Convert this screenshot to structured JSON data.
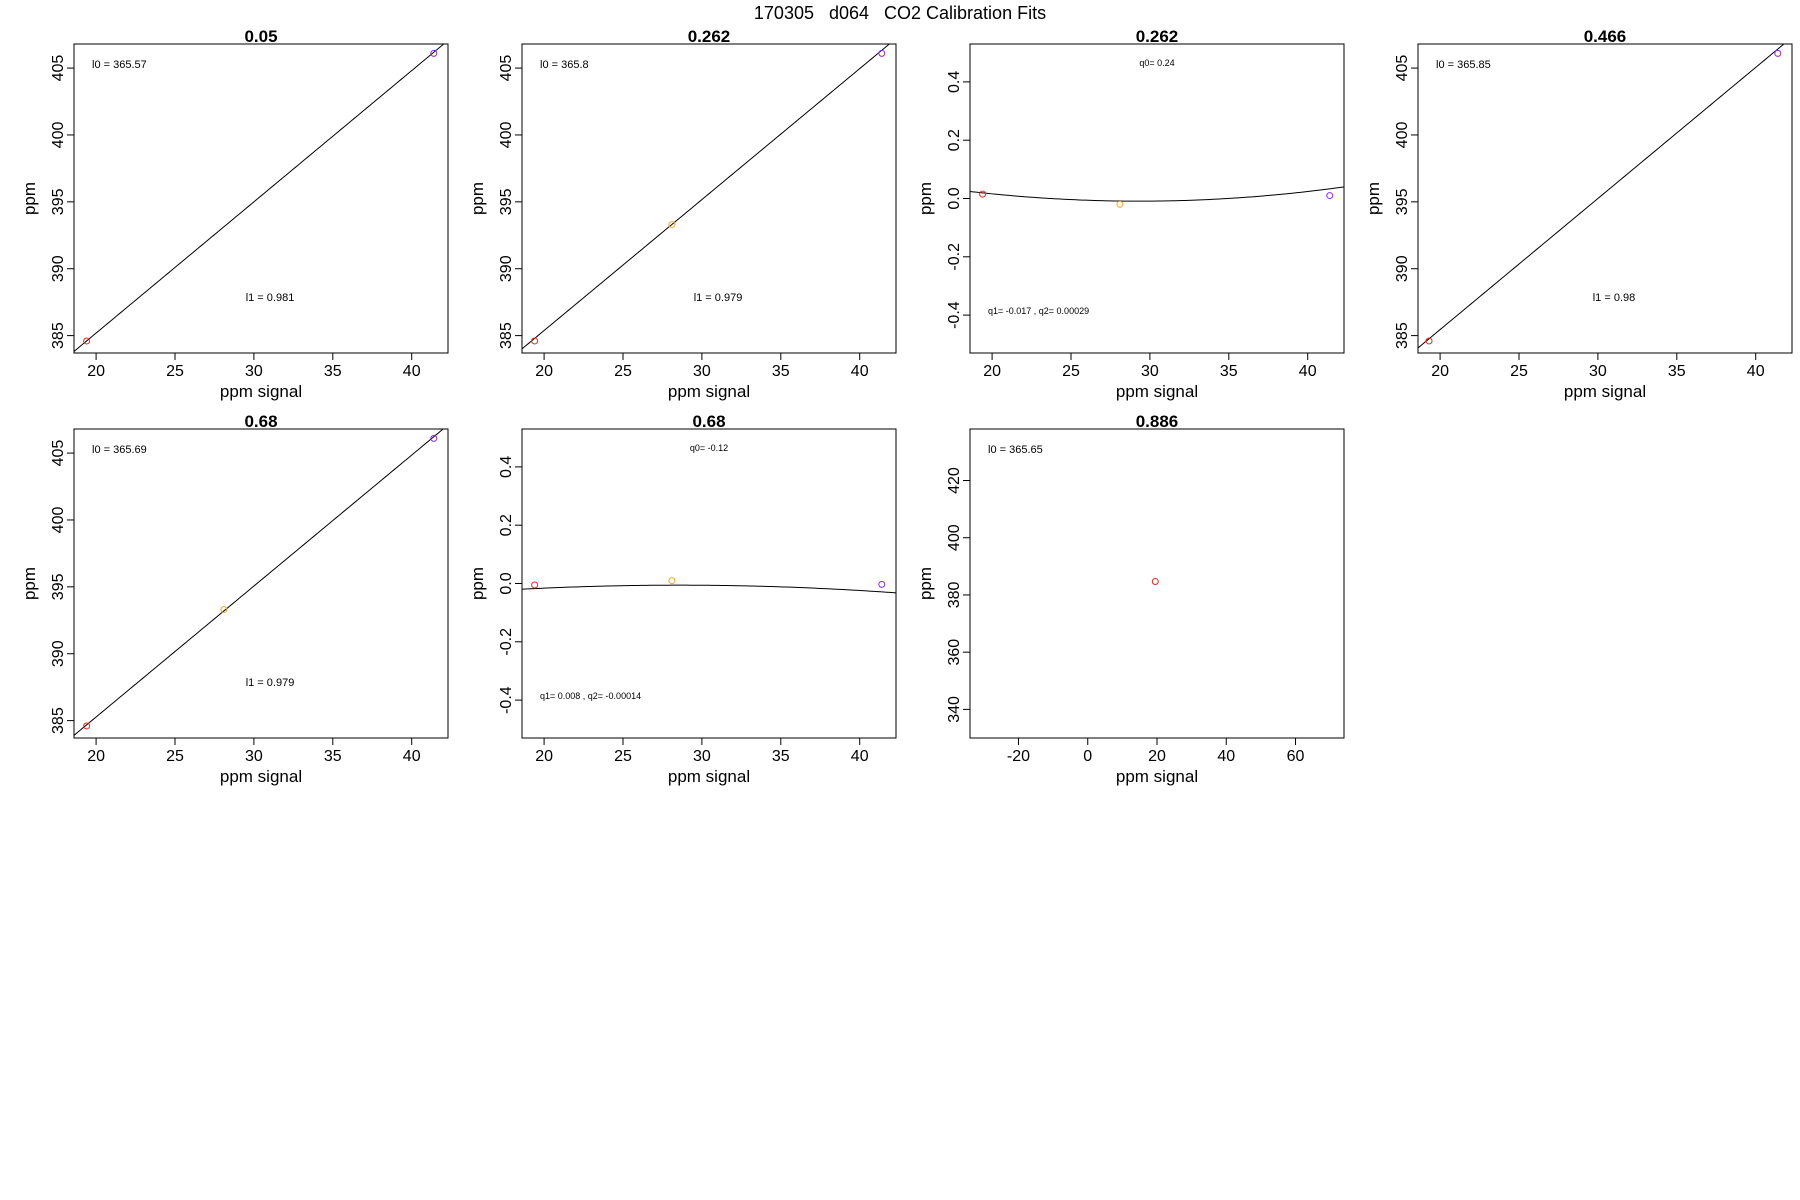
{
  "figure": {
    "title": "170305   d064   CO2 Calibration Fits"
  },
  "chart_data": [
    {
      "type": "scatter",
      "title": "0.05",
      "xlabel": "ppm signal",
      "ylabel": "ppm",
      "xlim": [
        18.6,
        42.3
      ],
      "ylim": [
        383.7,
        406.8
      ],
      "xticks": [
        20,
        25,
        30,
        35,
        40
      ],
      "yticks": [
        385,
        390,
        395,
        400,
        405
      ],
      "points": [
        {
          "x": 19.4,
          "y": 384.6,
          "color": "#e8271f"
        },
        {
          "x": 41.4,
          "y": 406.1,
          "color": "#8a2be2"
        }
      ],
      "fit": {
        "kind": "linear",
        "b0": 365.57,
        "b1": 0.981
      },
      "annotations": [
        {
          "text": "l0 =  365.57",
          "pos": "top-left"
        },
        {
          "text": "l1 =  0.981",
          "pos": "center-low"
        }
      ]
    },
    {
      "type": "scatter",
      "title": "0.262",
      "xlabel": "ppm signal",
      "ylabel": "ppm",
      "xlim": [
        18.6,
        42.3
      ],
      "ylim": [
        383.7,
        406.8
      ],
      "xticks": [
        20,
        25,
        30,
        35,
        40
      ],
      "yticks": [
        385,
        390,
        395,
        400,
        405
      ],
      "points": [
        {
          "x": 19.4,
          "y": 384.6,
          "color": "#e8271f"
        },
        {
          "x": 28.1,
          "y": 393.3,
          "color": "#f5a623"
        },
        {
          "x": 41.4,
          "y": 406.1,
          "color": "#8a2be2"
        }
      ],
      "fit": {
        "kind": "linear",
        "b0": 365.8,
        "b1": 0.979
      },
      "annotations": [
        {
          "text": "l0 =  365.8",
          "pos": "top-left"
        },
        {
          "text": "l1 =  0.979",
          "pos": "center-low"
        }
      ]
    },
    {
      "type": "scatter",
      "title": "0.262",
      "xlabel": "ppm signal",
      "ylabel": "ppm",
      "xlim": [
        18.6,
        42.3
      ],
      "ylim": [
        -0.53,
        0.53
      ],
      "xticks": [
        20,
        25,
        30,
        35,
        40
      ],
      "yticks": [
        -0.4,
        -0.2,
        0.0,
        0.2,
        0.4
      ],
      "ytick_labels": [
        "-0.4",
        "-0.2",
        "0.0",
        "0.2",
        "0.4"
      ],
      "points": [
        {
          "x": 19.4,
          "y": 0.015,
          "color": "#e8271f"
        },
        {
          "x": 28.1,
          "y": -0.02,
          "color": "#f5a623"
        },
        {
          "x": 41.4,
          "y": 0.01,
          "color": "#8a2be2"
        }
      ],
      "fit": {
        "kind": "quadratic",
        "q0": 0.24,
        "q1": -0.017,
        "q2": 0.00029
      },
      "annotations": [
        {
          "text": "q0= 0.24",
          "pos": "top-center",
          "small": true
        },
        {
          "text": "q1= -0.017 , q2= 0.00029",
          "pos": "bottom-left",
          "small": true
        }
      ]
    },
    {
      "type": "scatter",
      "title": "0.466",
      "xlabel": "ppm signal",
      "ylabel": "ppm",
      "xlim": [
        18.6,
        42.3
      ],
      "ylim": [
        383.7,
        406.8
      ],
      "xticks": [
        20,
        25,
        30,
        35,
        40
      ],
      "yticks": [
        385,
        390,
        395,
        400,
        405
      ],
      "points": [
        {
          "x": 19.3,
          "y": 384.6,
          "color": "#e8271f"
        },
        {
          "x": 41.4,
          "y": 406.1,
          "color": "#8a2be2"
        }
      ],
      "fit": {
        "kind": "linear",
        "b0": 365.85,
        "b1": 0.98
      },
      "annotations": [
        {
          "text": "l0 =  365.85",
          "pos": "top-left"
        },
        {
          "text": "l1 =  0.98",
          "pos": "center-low"
        }
      ]
    },
    {
      "type": "scatter",
      "title": "0.68",
      "xlabel": "ppm signal",
      "ylabel": "ppm",
      "xlim": [
        18.6,
        42.3
      ],
      "ylim": [
        383.7,
        406.8
      ],
      "xticks": [
        20,
        25,
        30,
        35,
        40
      ],
      "yticks": [
        385,
        390,
        395,
        400,
        405
      ],
      "points": [
        {
          "x": 19.4,
          "y": 384.6,
          "color": "#e8271f"
        },
        {
          "x": 28.1,
          "y": 393.3,
          "color": "#f5a623"
        },
        {
          "x": 41.4,
          "y": 406.1,
          "color": "#8a2be2"
        }
      ],
      "fit": {
        "kind": "linear",
        "b0": 365.69,
        "b1": 0.979
      },
      "annotations": [
        {
          "text": "l0 =  365.69",
          "pos": "top-left"
        },
        {
          "text": "l1 =  0.979",
          "pos": "center-low"
        }
      ]
    },
    {
      "type": "scatter",
      "title": "0.68",
      "xlabel": "ppm signal",
      "ylabel": "ppm",
      "xlim": [
        18.6,
        42.3
      ],
      "ylim": [
        -0.53,
        0.53
      ],
      "xticks": [
        20,
        25,
        30,
        35,
        40
      ],
      "yticks": [
        -0.4,
        -0.2,
        0.0,
        0.2,
        0.4
      ],
      "ytick_labels": [
        "-0.4",
        "-0.2",
        "0.0",
        "0.2",
        "0.4"
      ],
      "points": [
        {
          "x": 19.4,
          "y": -0.005,
          "color": "#e8271f"
        },
        {
          "x": 28.1,
          "y": 0.01,
          "color": "#f5a623"
        },
        {
          "x": 41.4,
          "y": -0.003,
          "color": "#8a2be2"
        }
      ],
      "fit": {
        "kind": "quadratic",
        "q0": -0.12,
        "q1": 0.008,
        "q2": -0.00014
      },
      "annotations": [
        {
          "text": "q0= -0.12",
          "pos": "top-center",
          "small": true
        },
        {
          "text": "q1= 0.008 , q2= -0.00014",
          "pos": "bottom-left",
          "small": true
        }
      ]
    },
    {
      "type": "scatter",
      "title": "0.886",
      "xlabel": "ppm signal",
      "ylabel": "ppm",
      "xlim": [
        -34,
        74
      ],
      "ylim": [
        330,
        438
      ],
      "xticks": [
        -20,
        0,
        20,
        40,
        60
      ],
      "yticks": [
        340,
        360,
        380,
        400,
        420
      ],
      "points": [
        {
          "x": 19.5,
          "y": 384.7,
          "color": "#e8271f"
        }
      ],
      "fit": null,
      "annotations": [
        {
          "text": "l0 =  365.65",
          "pos": "top-left"
        }
      ]
    }
  ]
}
